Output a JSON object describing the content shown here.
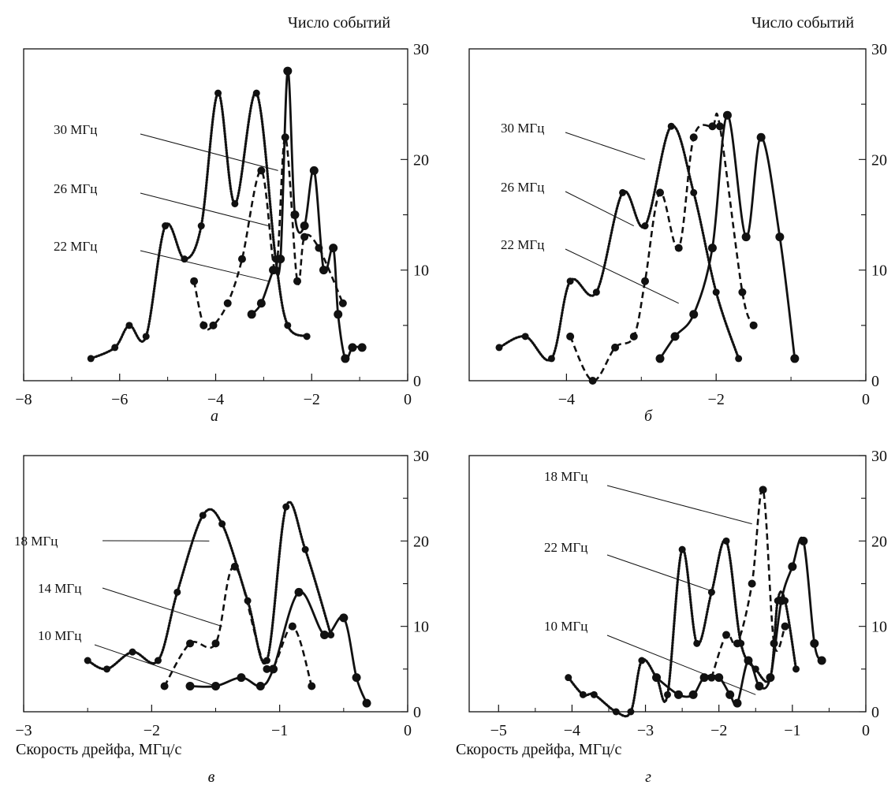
{
  "figure": {
    "ylabel": "Число событий",
    "xlabel": "Скорость дрейфа, МГц/с"
  },
  "chart_data": [
    {
      "type": "line",
      "panel_label": "а",
      "xlim": [
        -8,
        0
      ],
      "ylim": [
        0,
        30
      ],
      "x_ticks": [
        -8,
        -6,
        -4,
        -2,
        0
      ],
      "y_ticks": [
        30,
        20,
        10,
        0
      ],
      "series": [
        {
          "name": "30 МГц",
          "style": "dotted",
          "x": [
            -6.6,
            -6.1,
            -5.8,
            -5.45,
            -5.05,
            -4.65,
            -4.3,
            -3.95,
            -3.6,
            -3.15,
            -2.75,
            -2.5,
            -2.1
          ],
          "y": [
            2,
            3,
            5,
            4,
            14,
            11,
            14,
            26,
            16,
            26,
            11,
            5,
            4
          ]
        },
        {
          "name": "26 МГц",
          "style": "dashed",
          "x": [
            -4.45,
            -4.25,
            -4.05,
            -3.75,
            -3.45,
            -3.05,
            -2.75,
            -2.55,
            -2.3,
            -2.15,
            -1.85,
            -1.35
          ],
          "y": [
            9,
            5,
            5,
            7,
            11,
            19,
            10,
            22,
            9,
            13,
            12,
            7
          ]
        },
        {
          "name": "22 МГц",
          "style": "solid",
          "x": [
            -3.25,
            -3.05,
            -2.8,
            -2.65,
            -2.5,
            -2.35,
            -2.15,
            -1.95,
            -1.75,
            -1.55,
            -1.45,
            -1.3,
            -1.15,
            -0.95
          ],
          "y": [
            6,
            7,
            10,
            11,
            28,
            15,
            14,
            19,
            10,
            12,
            6,
            2,
            3,
            3
          ]
        }
      ]
    },
    {
      "type": "line",
      "panel_label": "б",
      "xlim": [
        -5.3,
        0
      ],
      "ylim": [
        0,
        30
      ],
      "x_ticks": [
        -4,
        -2,
        0
      ],
      "y_ticks": [
        30,
        20,
        10,
        0
      ],
      "series": [
        {
          "name": "30 МГц",
          "style": "dotted",
          "x": [
            -4.9,
            -4.55,
            -4.2,
            -3.95,
            -3.6,
            -3.25,
            -2.95,
            -2.6,
            -2.3,
            -2.0,
            -1.7
          ],
          "y": [
            3,
            4,
            2,
            9,
            8,
            17,
            14,
            23,
            17,
            8,
            2
          ]
        },
        {
          "name": "26 МГц",
          "style": "dashed",
          "x": [
            -3.95,
            -3.65,
            -3.35,
            -3.1,
            -2.95,
            -2.75,
            -2.5,
            -2.3,
            -2.05,
            -1.95,
            -1.65,
            -1.5
          ],
          "y": [
            4,
            0,
            3,
            4,
            9,
            17,
            12,
            22,
            23,
            23,
            8,
            5
          ]
        },
        {
          "name": "22 МГц",
          "style": "solid",
          "x": [
            -2.75,
            -2.55,
            -2.3,
            -2.05,
            -1.85,
            -1.6,
            -1.4,
            -1.15,
            -0.95
          ],
          "y": [
            2,
            4,
            6,
            12,
            24,
            13,
            22,
            13,
            2
          ]
        }
      ]
    },
    {
      "type": "line",
      "panel_label": "в",
      "xlim": [
        -3,
        0
      ],
      "ylim": [
        0,
        30
      ],
      "x_ticks": [
        -3,
        -2,
        -1,
        0
      ],
      "y_ticks": [
        30,
        20,
        10,
        0
      ],
      "series": [
        {
          "name": "18 МГц",
          "style": "dotted",
          "x": [
            -2.5,
            -2.35,
            -2.15,
            -1.95,
            -1.8,
            -1.6,
            -1.45,
            -1.25,
            -1.1,
            -0.95,
            -0.8,
            -0.6
          ],
          "y": [
            6,
            5,
            7,
            6,
            14,
            23,
            22,
            13,
            6,
            24,
            19,
            9
          ]
        },
        {
          "name": "14 МГц",
          "style": "dashed",
          "x": [
            -1.9,
            -1.7,
            -1.5,
            -1.35,
            -1.1,
            -0.9,
            -0.75
          ],
          "y": [
            3,
            8,
            8,
            17,
            5,
            10,
            3
          ]
        },
        {
          "name": "10 МГц",
          "style": "solid",
          "x": [
            -1.7,
            -1.5,
            -1.3,
            -1.15,
            -1.05,
            -0.85,
            -0.65,
            -0.5,
            -0.4,
            -0.32
          ],
          "y": [
            3,
            3,
            4,
            3,
            5,
            14,
            9,
            11,
            4,
            1
          ]
        }
      ]
    },
    {
      "type": "line",
      "panel_label": "г",
      "xlim": [
        -5.4,
        0
      ],
      "ylim": [
        0,
        30
      ],
      "x_ticks": [
        -5,
        -4,
        -3,
        -2,
        -1,
        0
      ],
      "y_ticks": [
        30,
        20,
        10,
        0
      ],
      "series": [
        {
          "name": "18 МГц",
          "style": "dotted",
          "x": [
            -4.05,
            -3.85,
            -3.7,
            -3.4,
            -3.2,
            -3.05,
            -2.85,
            -2.7,
            -2.5,
            -2.3,
            -2.1,
            -1.9,
            -1.7,
            -1.5,
            -1.3,
            -1.2,
            -1.1,
            -0.95
          ],
          "y": [
            4,
            2,
            2,
            0,
            0,
            6,
            4,
            2,
            19,
            8,
            14,
            20,
            8,
            5,
            4,
            13,
            13,
            5
          ]
        },
        {
          "name": "22 МГц",
          "style": "dashed",
          "x": [
            -2.1,
            -1.9,
            -1.75,
            -1.55,
            -1.4,
            -1.25,
            -1.1
          ],
          "y": [
            4,
            9,
            8,
            15,
            26,
            8,
            10
          ]
        },
        {
          "name": "10 МГц",
          "style": "solid",
          "x": [
            -2.85,
            -2.55,
            -2.35,
            -2.2,
            -2.0,
            -1.85,
            -1.75,
            -1.6,
            -1.45,
            -1.3,
            -1.15,
            -1.0,
            -0.85,
            -0.7,
            -0.6
          ],
          "y": [
            4,
            2,
            2,
            4,
            4,
            2,
            1,
            6,
            3,
            4,
            13,
            17,
            20,
            8,
            6
          ]
        }
      ]
    }
  ]
}
